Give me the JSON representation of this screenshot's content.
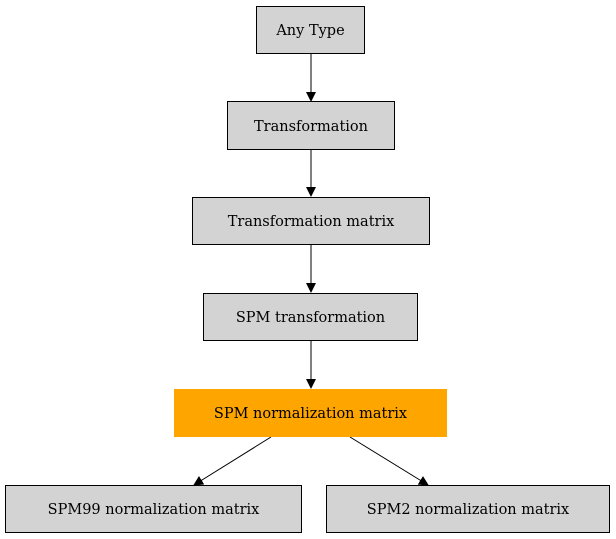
{
  "nodes": [
    {
      "id": "any_type",
      "label": "Any Type",
      "fill": "#d3d3d3",
      "highlighted": false
    },
    {
      "id": "transformation",
      "label": "Transformation",
      "fill": "#d3d3d3",
      "highlighted": false
    },
    {
      "id": "transformation_matrix",
      "label": "Transformation matrix",
      "fill": "#d3d3d3",
      "highlighted": false
    },
    {
      "id": "spm_transformation",
      "label": "SPM transformation",
      "fill": "#d3d3d3",
      "highlighted": false
    },
    {
      "id": "spm_normalization_matrix",
      "label": "SPM normalization matrix",
      "fill": "#ffa500",
      "highlighted": true
    },
    {
      "id": "spm99_normalization_matrix",
      "label": "SPM99 normalization matrix",
      "fill": "#d3d3d3",
      "highlighted": false
    },
    {
      "id": "spm2_normalization_matrix",
      "label": "SPM2 normalization matrix",
      "fill": "#d3d3d3",
      "highlighted": false
    }
  ],
  "edges": [
    {
      "from": "any_type",
      "to": "transformation"
    },
    {
      "from": "transformation",
      "to": "transformation_matrix"
    },
    {
      "from": "transformation_matrix",
      "to": "spm_transformation"
    },
    {
      "from": "spm_transformation",
      "to": "spm_normalization_matrix"
    },
    {
      "from": "spm_normalization_matrix",
      "to": "spm99_normalization_matrix"
    },
    {
      "from": "spm_normalization_matrix",
      "to": "spm2_normalization_matrix"
    }
  ]
}
